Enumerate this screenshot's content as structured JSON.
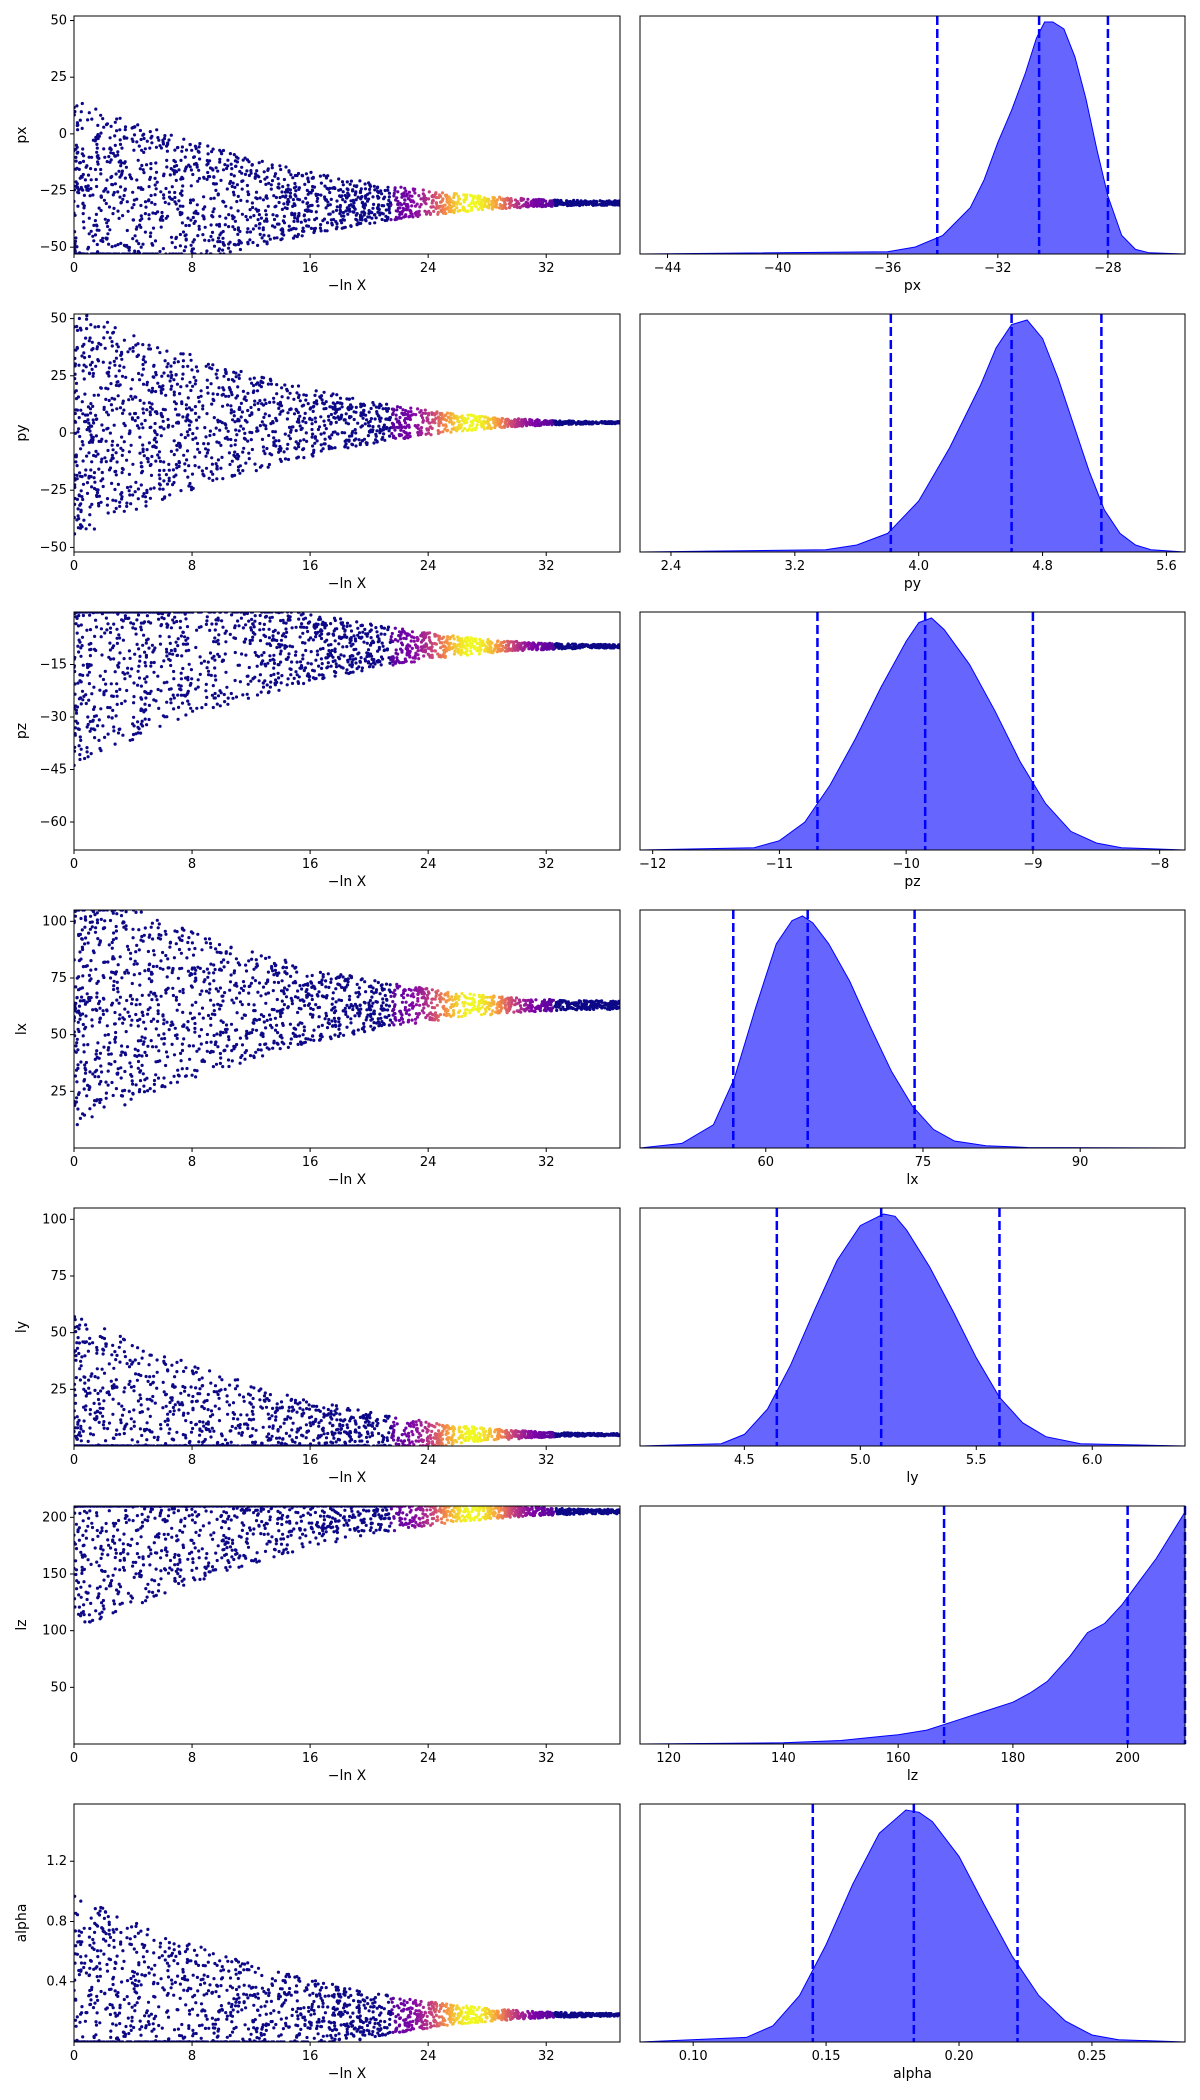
{
  "figure": {
    "colors": {
      "posterior_fill": "#0000ff",
      "posterior_fill_opacity": 0.6,
      "quantile_line": "#0000ff",
      "trace_low": "#0d0887",
      "trace_mid": "#b12a90",
      "trace_high": "#f0f921"
    }
  },
  "chart_data": [
    {
      "type": "scatter",
      "parameter": "px",
      "panel": "trace",
      "xlabel": "−ln X",
      "ylabel": "px",
      "xlim": [
        0,
        37
      ],
      "ylim": [
        -53,
        52
      ],
      "xticks": [
        "0",
        "8",
        "16",
        "24",
        "32"
      ],
      "yticks": [
        {
          "value": 50,
          "label": "50"
        },
        {
          "value": 25,
          "label": "25"
        },
        {
          "value": 0,
          "label": "0"
        },
        {
          "value": -25,
          "label": "−25"
        },
        {
          "value": -50,
          "label": "−50"
        }
      ],
      "convergence": {
        "center": -30.5,
        "spread_at_start": 90,
        "spread_at_end": 2,
        "bright_peak_x": 27
      }
    },
    {
      "type": "area",
      "parameter": "px",
      "panel": "posterior",
      "xlabel": "px",
      "xlim": [
        -45,
        -25.2
      ],
      "xticks": [
        {
          "value": -44,
          "label": "−44"
        },
        {
          "value": -40,
          "label": "−40"
        },
        {
          "value": -36,
          "label": "−36"
        },
        {
          "value": -32,
          "label": "−32"
        },
        {
          "value": -28,
          "label": "−28"
        }
      ],
      "quantiles": [
        -34.2,
        -30.5,
        -28.0
      ],
      "density": {
        "x": [
          -45,
          -36,
          -35,
          -34,
          -33,
          -32.5,
          -32,
          -31.5,
          -31,
          -30.6,
          -30.3,
          -30,
          -29.6,
          -29.2,
          -28.8,
          -28.4,
          -28,
          -27.5,
          -27,
          -26.5,
          -25.2
        ],
        "y": [
          0,
          0.01,
          0.03,
          0.08,
          0.2,
          0.32,
          0.48,
          0.62,
          0.78,
          0.93,
          1.0,
          1.0,
          0.97,
          0.85,
          0.67,
          0.45,
          0.25,
          0.08,
          0.02,
          0.005,
          0
        ]
      }
    },
    {
      "type": "scatter",
      "parameter": "py",
      "panel": "trace",
      "xlabel": "−ln X",
      "ylabel": "py",
      "xlim": [
        0,
        37
      ],
      "ylim": [
        -52,
        52
      ],
      "xticks": [
        "0",
        "8",
        "16",
        "24",
        "32"
      ],
      "yticks": [
        {
          "value": 50,
          "label": "50"
        },
        {
          "value": 25,
          "label": "25"
        },
        {
          "value": 0,
          "label": "0"
        },
        {
          "value": -25,
          "label": "−25"
        },
        {
          "value": -50,
          "label": "−50"
        }
      ],
      "convergence": {
        "center": 4.5,
        "spread_at_start": 100,
        "spread_at_end": 1,
        "bright_peak_x": 27
      }
    },
    {
      "type": "area",
      "parameter": "py",
      "panel": "posterior",
      "xlabel": "py",
      "xlim": [
        2.2,
        5.72
      ],
      "xticks": [
        {
          "value": 2.4,
          "label": "2.4"
        },
        {
          "value": 3.2,
          "label": "3.2"
        },
        {
          "value": 4.0,
          "label": "4.0"
        },
        {
          "value": 4.8,
          "label": "4.8"
        },
        {
          "value": 5.6,
          "label": "5.6"
        }
      ],
      "quantiles": [
        3.82,
        4.6,
        5.18
      ],
      "density": {
        "x": [
          2.2,
          3.4,
          3.6,
          3.8,
          4.0,
          4.2,
          4.4,
          4.5,
          4.6,
          4.7,
          4.8,
          4.9,
          5.0,
          5.1,
          5.2,
          5.3,
          5.4,
          5.5,
          5.72
        ],
        "y": [
          0,
          0.01,
          0.03,
          0.08,
          0.22,
          0.45,
          0.72,
          0.88,
          0.98,
          1.0,
          0.92,
          0.75,
          0.55,
          0.35,
          0.18,
          0.08,
          0.03,
          0.01,
          0
        ]
      }
    },
    {
      "type": "scatter",
      "parameter": "pz",
      "panel": "trace",
      "xlabel": "−ln X",
      "ylabel": "pz",
      "xlim": [
        0,
        37
      ],
      "ylim": [
        -68,
        0
      ],
      "xticks": [
        "0",
        "8",
        "16",
        "24",
        "32"
      ],
      "yticks": [
        {
          "value": -15,
          "label": "−15"
        },
        {
          "value": -30,
          "label": "−30"
        },
        {
          "value": -45,
          "label": "−45"
        },
        {
          "value": -60,
          "label": "−60"
        }
      ],
      "convergence": {
        "center": -9.8,
        "spread_at_start": 68,
        "spread_at_end": 1,
        "bright_peak_x": 27
      }
    },
    {
      "type": "area",
      "parameter": "pz",
      "panel": "posterior",
      "xlabel": "pz",
      "xlim": [
        -12.1,
        -7.8
      ],
      "xticks": [
        {
          "value": -12,
          "label": "−12"
        },
        {
          "value": -11,
          "label": "−11"
        },
        {
          "value": -10,
          "label": "−10"
        },
        {
          "value": -9,
          "label": "−9"
        },
        {
          "value": -8,
          "label": "−8"
        }
      ],
      "quantiles": [
        -10.7,
        -9.85,
        -9.0
      ],
      "density": {
        "x": [
          -12.1,
          -11.2,
          -11.0,
          -10.8,
          -10.6,
          -10.4,
          -10.2,
          -10.0,
          -9.9,
          -9.8,
          -9.7,
          -9.5,
          -9.3,
          -9.1,
          -8.9,
          -8.7,
          -8.5,
          -8.3,
          -7.8
        ],
        "y": [
          0,
          0.01,
          0.04,
          0.12,
          0.28,
          0.48,
          0.7,
          0.9,
          0.98,
          1.0,
          0.95,
          0.8,
          0.6,
          0.38,
          0.2,
          0.08,
          0.03,
          0.01,
          0
        ]
      }
    },
    {
      "type": "scatter",
      "parameter": "lx",
      "panel": "trace",
      "xlabel": "−ln X",
      "ylabel": "lx",
      "xlim": [
        0,
        37
      ],
      "ylim": [
        0,
        105
      ],
      "xticks": [
        "0",
        "8",
        "16",
        "24",
        "32"
      ],
      "yticks": [
        {
          "value": 100,
          "label": "100"
        },
        {
          "value": 75,
          "label": "75"
        },
        {
          "value": 50,
          "label": "50"
        },
        {
          "value": 25,
          "label": "25"
        }
      ],
      "convergence": {
        "center": 63,
        "spread_at_start": 105,
        "spread_at_end": 4,
        "bright_peak_x": 27
      }
    },
    {
      "type": "area",
      "parameter": "lx",
      "panel": "posterior",
      "xlabel": "lx",
      "xlim": [
        48,
        100
      ],
      "xticks": [
        {
          "value": 60,
          "label": "60"
        },
        {
          "value": 75,
          "label": "75"
        },
        {
          "value": 90,
          "label": "90"
        }
      ],
      "quantiles": [
        56.9,
        64.0,
        74.2
      ],
      "density": {
        "x": [
          48,
          52,
          55,
          57,
          59,
          61,
          62.5,
          63.5,
          64.5,
          66,
          68,
          70,
          72,
          74,
          76,
          78,
          81,
          85,
          100
        ],
        "y": [
          0,
          0.02,
          0.1,
          0.3,
          0.6,
          0.88,
          0.98,
          1.0,
          0.97,
          0.88,
          0.72,
          0.52,
          0.33,
          0.18,
          0.08,
          0.03,
          0.01,
          0.002,
          0
        ]
      }
    },
    {
      "type": "scatter",
      "parameter": "ly",
      "panel": "trace",
      "xlabel": "−ln X",
      "ylabel": "ly",
      "xlim": [
        0,
        37
      ],
      "ylim": [
        0,
        105
      ],
      "xticks": [
        "0",
        "8",
        "16",
        "24",
        "32"
      ],
      "yticks": [
        {
          "value": 100,
          "label": "100"
        },
        {
          "value": 75,
          "label": "75"
        },
        {
          "value": 50,
          "label": "50"
        },
        {
          "value": 25,
          "label": "25"
        }
      ],
      "convergence": {
        "center": 5,
        "spread_at_start": 105,
        "spread_at_end": 1,
        "bright_peak_x": 27
      }
    },
    {
      "type": "area",
      "parameter": "ly",
      "panel": "posterior",
      "xlabel": "ly",
      "xlim": [
        4.05,
        6.4
      ],
      "xticks": [
        {
          "value": 4.5,
          "label": "4.5"
        },
        {
          "value": 5.0,
          "label": "5.0"
        },
        {
          "value": 5.5,
          "label": "5.5"
        },
        {
          "value": 6.0,
          "label": "6.0"
        }
      ],
      "quantiles": [
        4.64,
        5.09,
        5.6
      ],
      "density": {
        "x": [
          4.05,
          4.4,
          4.5,
          4.6,
          4.7,
          4.8,
          4.9,
          5.0,
          5.1,
          5.15,
          5.2,
          5.3,
          5.4,
          5.5,
          5.6,
          5.7,
          5.8,
          5.95,
          6.4
        ],
        "y": [
          0,
          0.01,
          0.05,
          0.16,
          0.35,
          0.58,
          0.8,
          0.95,
          1.0,
          0.99,
          0.93,
          0.77,
          0.58,
          0.38,
          0.21,
          0.1,
          0.04,
          0.01,
          0
        ]
      }
    },
    {
      "type": "scatter",
      "parameter": "lz",
      "panel": "trace",
      "xlabel": "−ln X",
      "ylabel": "lz",
      "xlim": [
        0,
        37
      ],
      "ylim": [
        0,
        210
      ],
      "xticks": [
        "0",
        "8",
        "16",
        "24",
        "32"
      ],
      "yticks": [
        {
          "value": 200,
          "label": "200"
        },
        {
          "value": 150,
          "label": "150"
        },
        {
          "value": 100,
          "label": "100"
        },
        {
          "value": 50,
          "label": "50"
        }
      ],
      "convergence": {
        "center": 205,
        "spread_at_start": 210,
        "spread_at_end": 4,
        "bright_peak_x": 27
      }
    },
    {
      "type": "area",
      "parameter": "lz",
      "panel": "posterior",
      "xlabel": "lz",
      "xlim": [
        115,
        210
      ],
      "xticks": [
        {
          "value": 120,
          "label": "120"
        },
        {
          "value": 140,
          "label": "140"
        },
        {
          "value": 160,
          "label": "160"
        },
        {
          "value": 180,
          "label": "180"
        },
        {
          "value": 200,
          "label": "200"
        }
      ],
      "quantiles": [
        168,
        200,
        210
      ],
      "density": {
        "x": [
          115,
          140,
          150,
          160,
          165,
          170,
          175,
          180,
          183,
          186,
          190,
          193,
          196,
          199,
          202,
          205,
          208,
          210
        ],
        "y": [
          0,
          0.005,
          0.015,
          0.04,
          0.06,
          0.1,
          0.14,
          0.18,
          0.22,
          0.27,
          0.38,
          0.48,
          0.52,
          0.6,
          0.7,
          0.8,
          0.92,
          1.0
        ]
      }
    },
    {
      "type": "scatter",
      "parameter": "alpha",
      "panel": "trace",
      "xlabel": "−ln X",
      "ylabel": "alpha",
      "xlim": [
        0,
        37
      ],
      "ylim": [
        0,
        1.58
      ],
      "xticks": [
        "0",
        "8",
        "16",
        "24",
        "32"
      ],
      "yticks": [
        {
          "value": 1.2,
          "label": "1.2"
        },
        {
          "value": 0.8,
          "label": "0.8"
        },
        {
          "value": 0.4,
          "label": "0.4"
        }
      ],
      "convergence": {
        "center": 0.18,
        "spread_at_start": 1.58,
        "spread_at_end": 0.02,
        "bright_peak_x": 27
      }
    },
    {
      "type": "area",
      "parameter": "alpha",
      "panel": "posterior",
      "xlabel": "alpha",
      "xlim": [
        0.08,
        0.285
      ],
      "xticks": [
        {
          "value": 0.1,
          "label": "0.10"
        },
        {
          "value": 0.15,
          "label": "0.15"
        },
        {
          "value": 0.2,
          "label": "0.20"
        },
        {
          "value": 0.25,
          "label": "0.25"
        }
      ],
      "quantiles": [
        0.145,
        0.183,
        0.222
      ],
      "density": {
        "x": [
          0.08,
          0.12,
          0.13,
          0.14,
          0.15,
          0.16,
          0.17,
          0.18,
          0.185,
          0.19,
          0.2,
          0.21,
          0.22,
          0.23,
          0.24,
          0.25,
          0.26,
          0.285
        ],
        "y": [
          0,
          0.02,
          0.07,
          0.2,
          0.42,
          0.68,
          0.9,
          1.0,
          0.99,
          0.95,
          0.8,
          0.58,
          0.37,
          0.2,
          0.09,
          0.03,
          0.01,
          0
        ]
      }
    }
  ]
}
